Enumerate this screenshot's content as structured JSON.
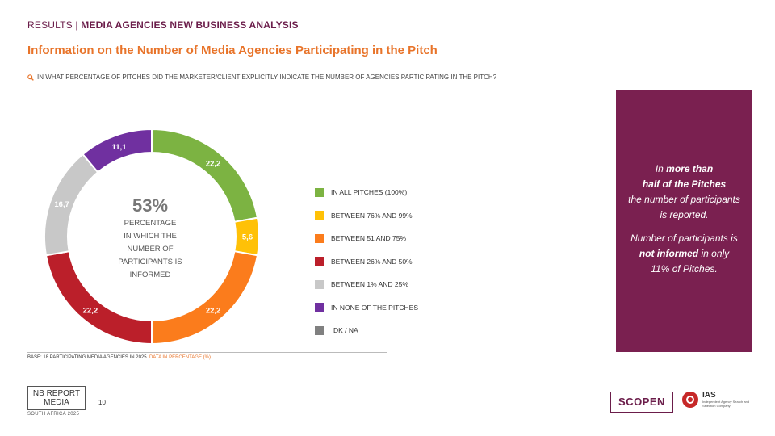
{
  "header": {
    "section": "RESULTS |",
    "subsection": "MEDIA AGENCIES NEW BUSINESS ANALYSIS",
    "title": "Information on the Number of Media Agencies Participating in the Pitch",
    "question": "IN WHAT PERCENTAGE OF PITCHES DID THE MARKETER/CLIENT EXPLICITLY INDICATE THE NUMBER OF AGENCIES PARTICIPATING IN THE PITCH?"
  },
  "center": {
    "value": "53%",
    "line1": "PERCENTAGE",
    "line2": "IN WHICH THE",
    "line3": "NUMBER OF",
    "line4": "PARTICIPANTS IS",
    "line5": "INFORMED"
  },
  "chart_data": {
    "type": "pie",
    "categories": [
      "IN ALL PITCHES (100%)",
      "BETWEEN 76% AND 99%",
      "BETWEEN 51 AND 75%",
      "BETWEEN 26% AND 50%",
      "BETWEEN 1% AND 25%",
      "IN NONE OF THE PITCHES",
      "DK / NA"
    ],
    "values": [
      22.2,
      5.6,
      22.2,
      22.2,
      16.7,
      11.1,
      0
    ],
    "labels": [
      "22,2",
      "5,6",
      "22,2",
      "22,2",
      "16,7",
      "11,1",
      ""
    ],
    "colors": [
      "#7cb342",
      "#ffc107",
      "#fb7c1c",
      "#bb1f2a",
      "#c8c8c8",
      "#7030a0",
      "#808080"
    ],
    "donut": true,
    "legend_position": "right"
  },
  "footnote": {
    "base": "BASE: 18 PARTICIPATING MEDIA AGENCIES IN 2025.",
    "unit": "DATA IN PERCENTAGE (%)"
  },
  "callout": {
    "p1_a": "In ",
    "p1_b": "more than",
    "p1_c": "half of the Pitches",
    "p1_d": "the number of participants",
    "p1_e": "is reported.",
    "p2_a": "Number of participants is",
    "p2_b": "not informed",
    "p2_c": " in only",
    "p2_d": "11% of Pitches."
  },
  "footer": {
    "logo_line1": "NB REPORT",
    "logo_line2": "MEDIA",
    "logo_sub": "SOUTH AFRICA 2025",
    "page": "10",
    "scopen": "SCOPEN",
    "ias": "IAS",
    "ias_sub": "Independent Agency Search and Selection Company"
  },
  "icons": {
    "question": "search-icon"
  }
}
